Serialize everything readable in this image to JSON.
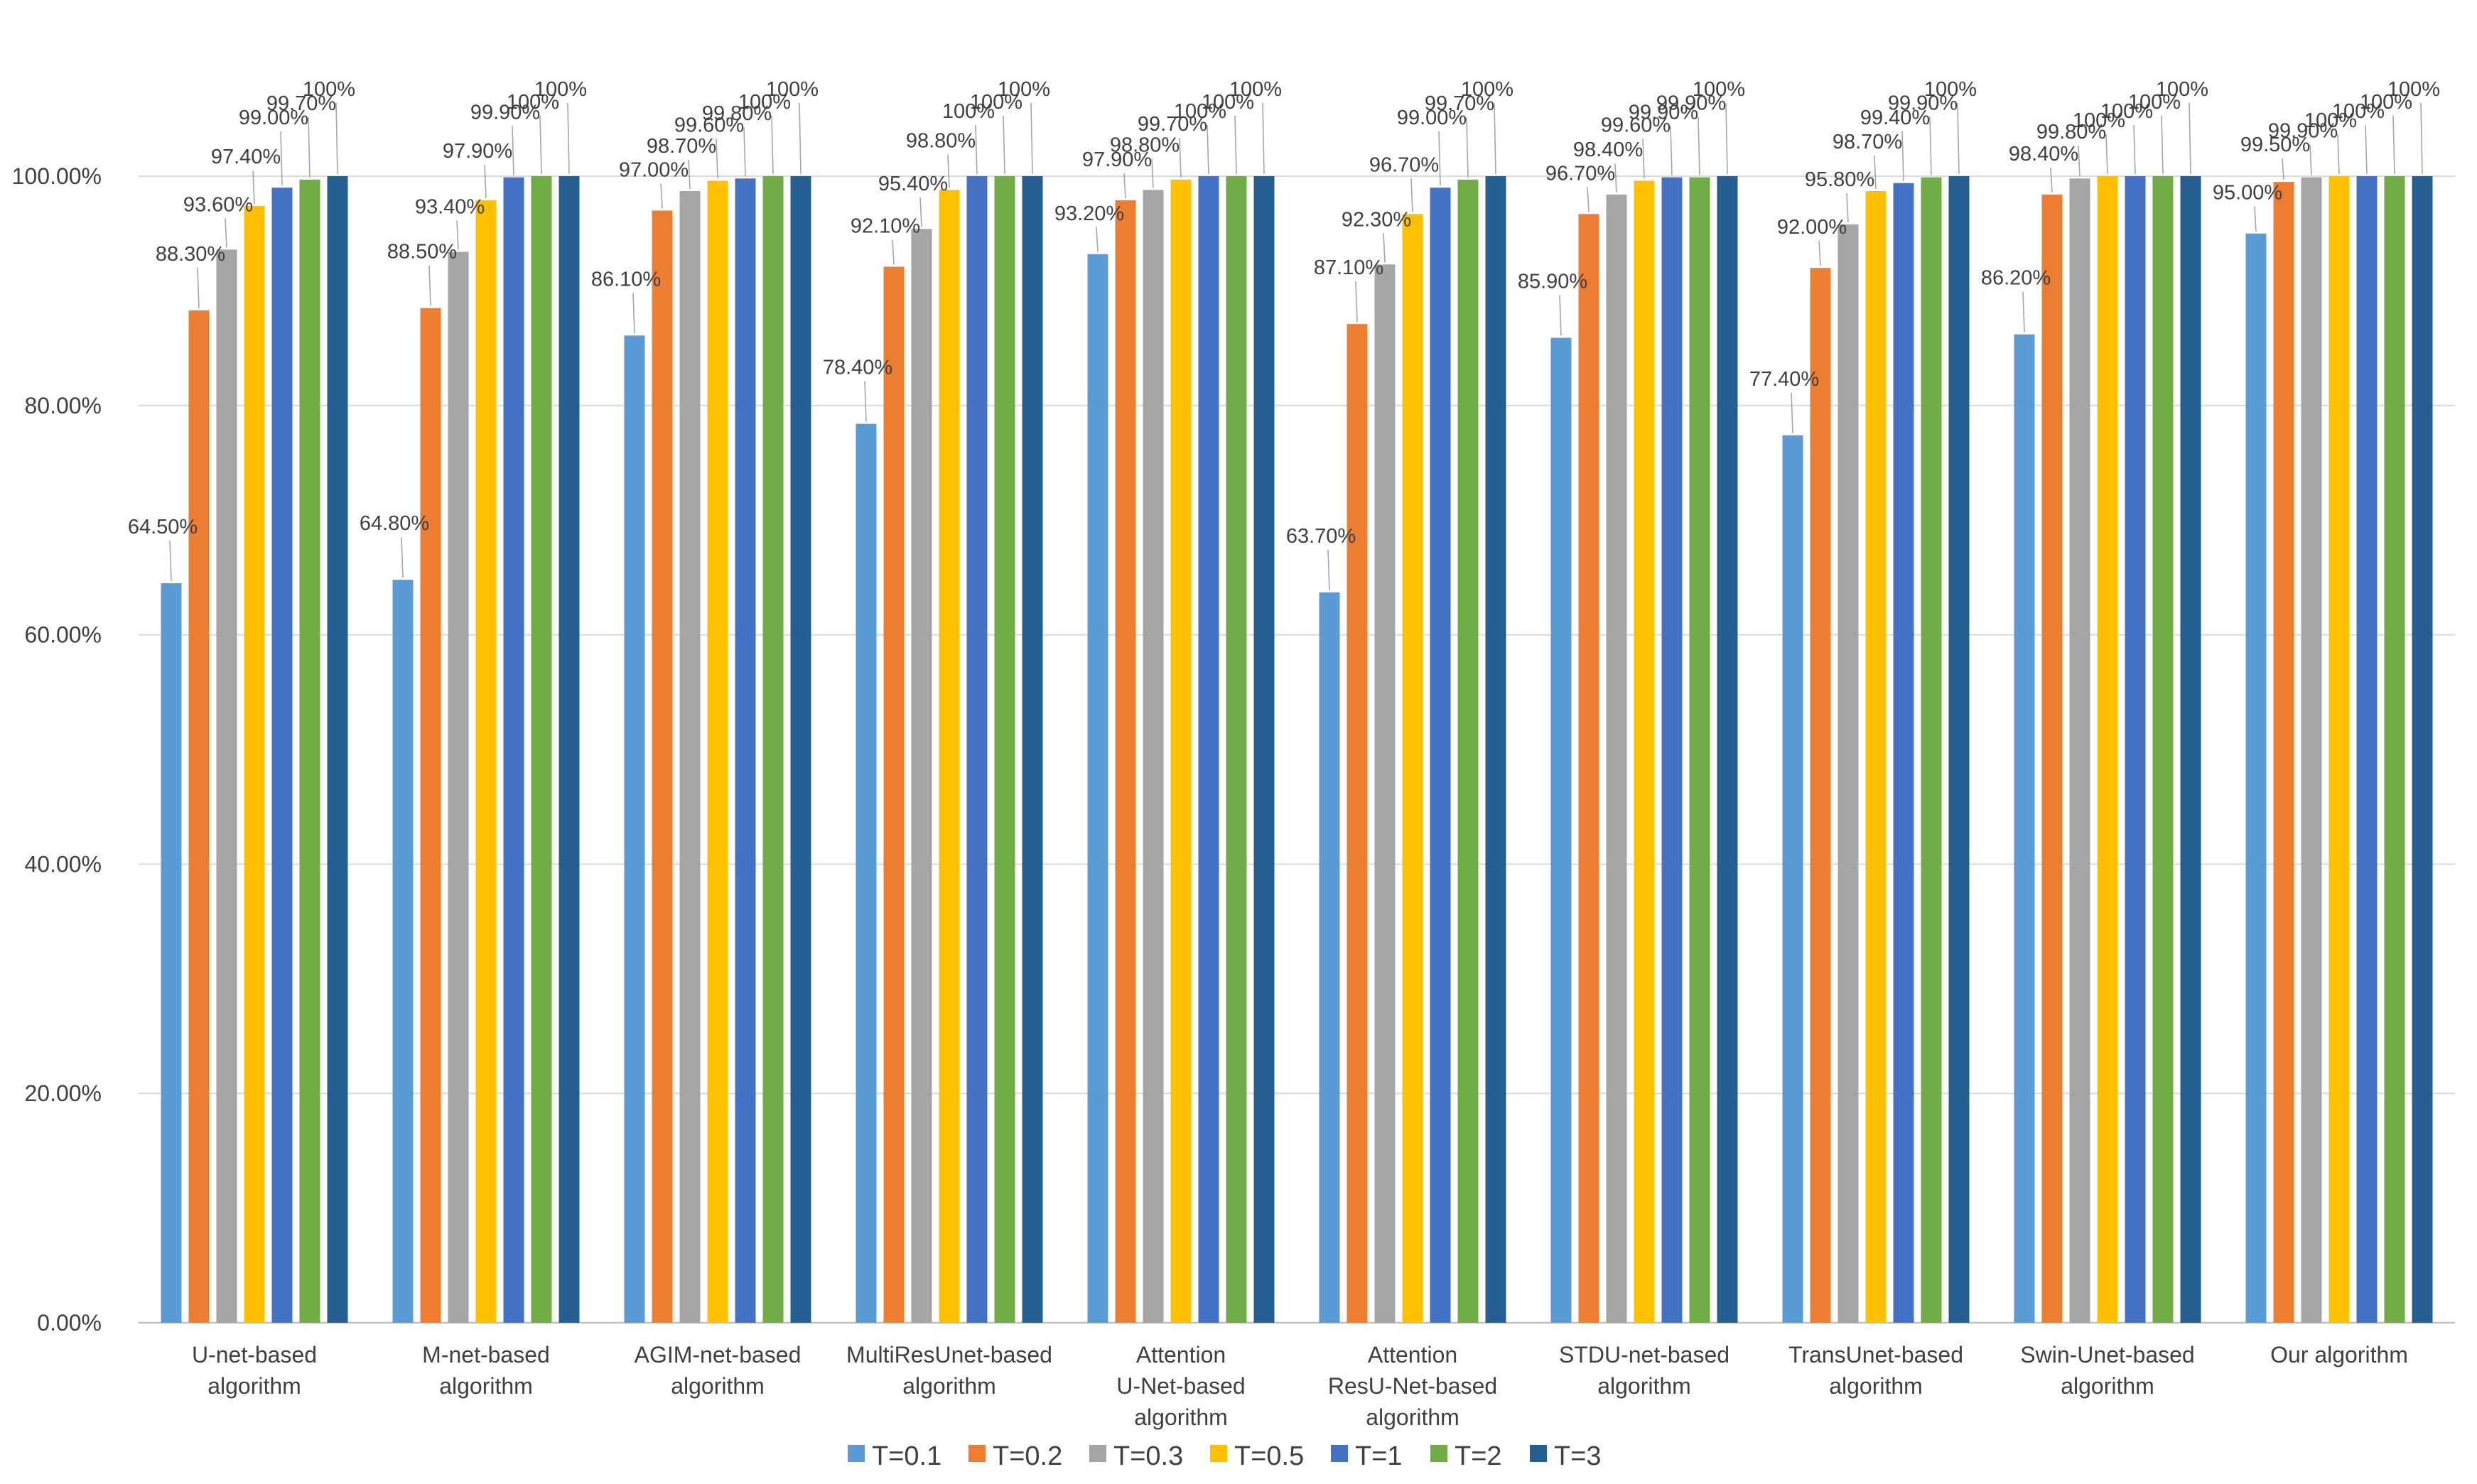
{
  "chart_data": {
    "type": "bar",
    "title": "",
    "xlabel": "",
    "ylabel": "",
    "ylim": [
      0,
      100
    ],
    "y_ticks": [
      0,
      20,
      40,
      60,
      80,
      100
    ],
    "y_tick_labels": [
      "0.00%",
      "20.00%",
      "40.00%",
      "60.00%",
      "80.00%",
      "100.00%"
    ],
    "grid": true,
    "legend_position": "bottom",
    "categories": [
      [
        "U-net-based",
        "algorithm"
      ],
      [
        "M-net-based",
        "algorithm"
      ],
      [
        "AGIM-net-based",
        "algorithm"
      ],
      [
        "MultiResUnet-based",
        "algorithm"
      ],
      [
        "Attention",
        "U-Net-based",
        "algorithm"
      ],
      [
        "Attention",
        "ResU-Net-based",
        "algorithm"
      ],
      [
        "STDU-net-based",
        "algorithm"
      ],
      [
        "TransUnet-based",
        "algorithm"
      ],
      [
        "Swin-Unet-based",
        "algorithm"
      ],
      [
        "Our algorithm"
      ]
    ],
    "series": [
      {
        "name": "T=0.1",
        "color": "#5B9BD5",
        "values": [
          64.5,
          64.8,
          86.1,
          78.4,
          93.2,
          63.7,
          85.9,
          77.4,
          86.2,
          95.0
        ],
        "labels": [
          "64.50%",
          "64.80%",
          "86.10%",
          "78.40%",
          "93.20%",
          "63.70%",
          "85.90%",
          "77.40%",
          "86.20%",
          "95.00%"
        ]
      },
      {
        "name": "T=0.2",
        "color": "#ED7D31",
        "values": [
          88.3,
          88.5,
          97.0,
          92.1,
          97.9,
          87.1,
          96.7,
          92.0,
          98.4,
          99.5
        ],
        "labels": [
          "88.30%",
          "88.50%",
          "97.00%",
          "92.10%",
          "97.90%",
          "87.10%",
          "96.70%",
          "92.00%",
          "98.40%",
          "99.50%"
        ]
      },
      {
        "name": "T=0.3",
        "color": "#A5A5A5",
        "values": [
          93.6,
          93.4,
          98.7,
          95.4,
          98.8,
          92.3,
          98.4,
          95.8,
          99.8,
          99.9
        ],
        "labels": [
          "93.60%",
          "93.40%",
          "98.70%",
          "95.40%",
          "98.80%",
          "92.30%",
          "98.40%",
          "95.80%",
          "99.80%",
          "99.90%"
        ]
      },
      {
        "name": "T=0.5",
        "color": "#FFC000",
        "values": [
          97.4,
          97.9,
          99.6,
          98.8,
          99.7,
          96.7,
          99.6,
          98.7,
          100,
          100
        ],
        "labels": [
          "97.40%",
          "97.90%",
          "99.60%",
          "98.80%",
          "99.70%",
          "96.70%",
          "99.60%",
          "98.70%",
          "100%",
          "100%"
        ]
      },
      {
        "name": "T=1",
        "color": "#4472C4",
        "values": [
          99.0,
          99.9,
          99.8,
          100,
          100,
          99.0,
          99.9,
          99.4,
          100,
          100
        ],
        "labels": [
          "99.00%",
          "99.90%",
          "99.80%",
          "100%",
          "100%",
          "99.00%",
          "99.90%",
          "99.40%",
          "100%",
          "100%"
        ]
      },
      {
        "name": "T=2",
        "color": "#70AD47",
        "values": [
          99.7,
          100,
          100,
          100,
          100,
          99.7,
          99.9,
          99.9,
          100,
          100
        ],
        "labels": [
          "99.70%",
          "100%",
          "100%",
          "100%",
          "100%",
          "99.70%",
          "99.90%",
          "99.90%",
          "100%",
          "100%"
        ]
      },
      {
        "name": "T=3",
        "color": "#255E91",
        "values": [
          100,
          100,
          100,
          100,
          100,
          100,
          100,
          100,
          100,
          100
        ],
        "labels": [
          "100%",
          "100%",
          "100%",
          "100%",
          "100%",
          "100%",
          "100%",
          "100%",
          "100%",
          "100%"
        ]
      }
    ]
  }
}
